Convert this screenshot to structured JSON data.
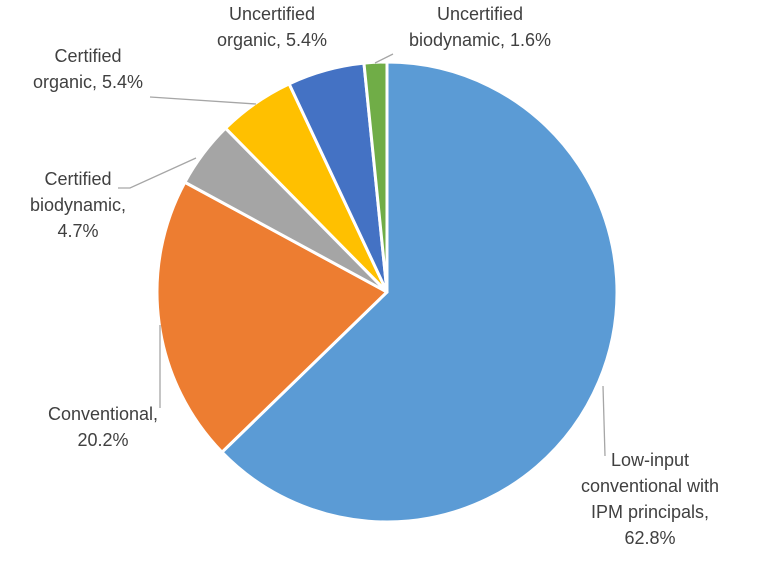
{
  "chart_data": {
    "type": "pie",
    "title": "",
    "legend": "none",
    "slices": [
      {
        "label_lines": [
          "Low-input",
          "conventional with",
          "IPM principals,",
          "62.8%"
        ],
        "category": "Low-input conventional with IPM principals",
        "value": 62.8,
        "color": "#5B9BD5"
      },
      {
        "label_lines": [
          "Conventional,",
          "20.2%"
        ],
        "category": "Conventional",
        "value": 20.2,
        "color": "#ED7D31"
      },
      {
        "label_lines": [
          "Certified",
          "biodynamic,",
          "4.7%"
        ],
        "category": "Certified biodynamic",
        "value": 4.7,
        "color": "#A5A5A5"
      },
      {
        "label_lines": [
          "Certified",
          "organic, 5.4%"
        ],
        "category": "Certified organic",
        "value": 5.4,
        "color": "#FFC000"
      },
      {
        "label_lines": [
          "Uncertified",
          "organic, 5.4%"
        ],
        "category": "Uncertified organic",
        "value": 5.4,
        "color": "#4472C4"
      },
      {
        "label_lines": [
          "Uncertified",
          "biodynamic, 1.6%"
        ],
        "category": "Uncertified biodynamic",
        "value": 1.6,
        "color": "#70AD47"
      }
    ],
    "leader_color": "#A6A6A6"
  }
}
